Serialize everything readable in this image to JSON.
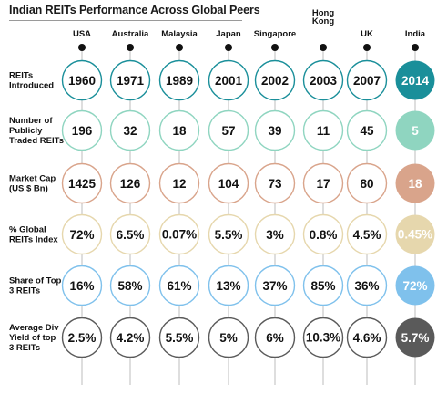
{
  "title": "Indian REITs Performance Across Global Peers",
  "countries": [
    "USA",
    "Australia",
    "Malaysia",
    "Japan",
    "Singapore",
    "Hong Kong",
    "UK",
    "India"
  ],
  "rows": [
    {
      "label": "REITs Introduced",
      "color": "#1a8f9a",
      "values": [
        "1960",
        "1971",
        "1989",
        "2001",
        "2002",
        "2003",
        "2007",
        "2014"
      ]
    },
    {
      "label": "Number of Publicly Traded REITs",
      "color": "#8fd5c0",
      "values": [
        "196",
        "32",
        "18",
        "57",
        "39",
        "11",
        "45",
        "5"
      ]
    },
    {
      "label": "Market Cap (US $ Bn)",
      "color": "#d9a48b",
      "values": [
        "1425",
        "126",
        "12",
        "104",
        "73",
        "17",
        "80",
        "18"
      ]
    },
    {
      "label": "% Global REITs Index",
      "color": "#e6d7ad",
      "values": [
        "72%",
        "6.5%",
        "0.07%",
        "5.5%",
        "3%",
        "0.8%",
        "4.5%",
        "0.45%"
      ]
    },
    {
      "label": "Share of Top 3 REITs",
      "color": "#7fc1ec",
      "values": [
        "16%",
        "58%",
        "61%",
        "13%",
        "37%",
        "85%",
        "36%",
        "72%"
      ]
    },
    {
      "label": "Average Div Yield of top 3 REITs",
      "color": "#5a5a5a",
      "values": [
        "2.5%",
        "4.2%",
        "5.5%",
        "5%",
        "6%",
        "10.3%",
        "4.6%",
        "5.7%"
      ]
    }
  ],
  "chart_data": {
    "type": "table",
    "title": "Indian REITs Performance Across Global Peers",
    "columns": [
      "USA",
      "Australia",
      "Malaysia",
      "Japan",
      "Singapore",
      "Hong Kong",
      "UK",
      "India"
    ],
    "rows": [
      {
        "name": "REITs Introduced",
        "values": [
          1960,
          1971,
          1989,
          2001,
          2002,
          2003,
          2007,
          2014
        ]
      },
      {
        "name": "Number of Publicly Traded REITs",
        "values": [
          196,
          32,
          18,
          57,
          39,
          11,
          45,
          5
        ]
      },
      {
        "name": "Market Cap (US $ Bn)",
        "values": [
          1425,
          126,
          12,
          104,
          73,
          17,
          80,
          18
        ]
      },
      {
        "name": "% Global REITs Index",
        "values": [
          72,
          6.5,
          0.07,
          5.5,
          3,
          0.8,
          4.5,
          0.45
        ]
      },
      {
        "name": "Share of Top 3 REITs",
        "values": [
          16,
          58,
          61,
          13,
          37,
          85,
          36,
          72
        ]
      },
      {
        "name": "Average Div Yield of top 3 REITs",
        "values": [
          2.5,
          4.2,
          5.5,
          5,
          6,
          10.3,
          4.6,
          5.7
        ]
      }
    ]
  }
}
